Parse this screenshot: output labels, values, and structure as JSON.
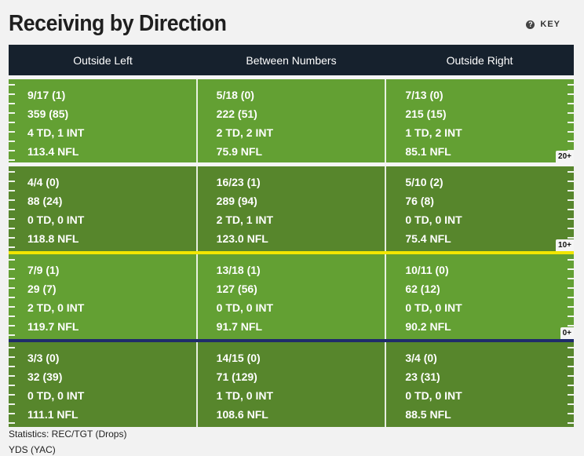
{
  "title": "Receiving by Direction",
  "key_label": "KEY",
  "columns": [
    "Outside Left",
    "Between Numbers",
    "Outside Right"
  ],
  "zones": [
    {
      "marker": "20+",
      "color": "#63a033",
      "cells": [
        [
          "9/17 (1)",
          "359 (85)",
          "4 TD, 1 INT",
          "113.4 NFL"
        ],
        [
          "5/18 (0)",
          "222 (51)",
          "2 TD, 2 INT",
          "75.9 NFL"
        ],
        [
          "7/13 (0)",
          "215 (15)",
          "1 TD, 2 INT",
          "85.1 NFL"
        ]
      ]
    },
    {
      "marker": "10+",
      "color": "#57862c",
      "cells": [
        [
          "4/4 (0)",
          "88 (24)",
          "0 TD, 0 INT",
          "118.8 NFL"
        ],
        [
          "16/23 (1)",
          "289 (94)",
          "2 TD, 1 INT",
          "123.0 NFL"
        ],
        [
          "5/10 (2)",
          "76 (8)",
          "0 TD, 0 INT",
          "75.4 NFL"
        ]
      ]
    },
    {
      "marker": "0+",
      "color": "#63a033",
      "cells": [
        [
          "7/9 (1)",
          "29 (7)",
          "2 TD, 0 INT",
          "119.7 NFL"
        ],
        [
          "13/18 (1)",
          "127 (56)",
          "0 TD, 0 INT",
          "91.7 NFL"
        ],
        [
          "10/11 (0)",
          "62 (12)",
          "0 TD, 0 INT",
          "90.2 NFL"
        ]
      ]
    },
    {
      "marker": "",
      "color": "#57862c",
      "cells": [
        [
          "3/3 (0)",
          "32 (39)",
          "0 TD, 0 INT",
          "111.1 NFL"
        ],
        [
          "14/15 (0)",
          "71 (129)",
          "1 TD, 0 INT",
          "108.6 NFL"
        ],
        [
          "3/4 (0)",
          "23 (31)",
          "0 TD, 0 INT",
          "88.5 NFL"
        ]
      ]
    }
  ],
  "lines": {
    "first_down": "#f2e600",
    "line_of_scrimmage": "#1f2b6b"
  },
  "footer": {
    "line1": "Statistics: REC/TGT (Drops)",
    "line2": "YDS (YAC)"
  }
}
